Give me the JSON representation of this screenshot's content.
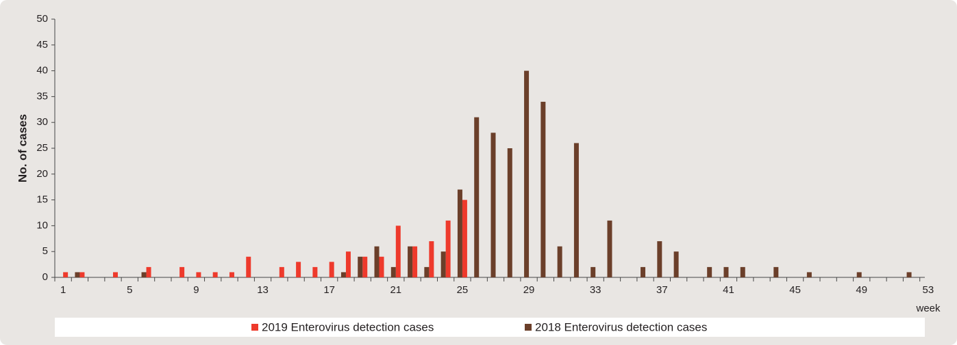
{
  "chart_data": {
    "type": "bar",
    "x_label": "week",
    "y_label": "No. of cases",
    "categories": [
      "1",
      null,
      null,
      null,
      "5",
      null,
      null,
      null,
      "9",
      null,
      null,
      null,
      "13",
      null,
      null,
      null,
      "17",
      null,
      null,
      null,
      "21",
      null,
      null,
      null,
      "25",
      null,
      null,
      null,
      "29",
      null,
      null,
      null,
      "33",
      null,
      null,
      null,
      "37",
      null,
      null,
      null,
      "41",
      null,
      null,
      null,
      "45",
      null,
      null,
      null,
      "49",
      null,
      null,
      null,
      "53"
    ],
    "series": [
      {
        "name": "2019 Enterovirus detection cases",
        "color": "#ee3a2c",
        "values": [
          1,
          1,
          0,
          1,
          0,
          2,
          0,
          2,
          1,
          1,
          1,
          4,
          0,
          2,
          3,
          2,
          3,
          5,
          4,
          4,
          10,
          6,
          7,
          11,
          15,
          null,
          null,
          null,
          null,
          null,
          null,
          null,
          null,
          null,
          null,
          null,
          null,
          null,
          null,
          null,
          null,
          null,
          null,
          null,
          null,
          null,
          null,
          null,
          null,
          null,
          null,
          null,
          null
        ]
      },
      {
        "name": "2018 Enterovirus detection cases",
        "color": "#6b3f2a",
        "values": [
          0,
          1,
          0,
          0,
          0,
          1,
          0,
          0,
          0,
          0,
          0,
          0,
          0,
          0,
          0,
          0,
          0,
          1,
          4,
          6,
          2,
          6,
          2,
          5,
          17,
          31,
          28,
          25,
          40,
          34,
          6,
          26,
          2,
          11,
          0,
          2,
          7,
          5,
          0,
          2,
          2,
          2,
          0,
          2,
          0,
          1,
          0,
          0,
          1,
          0,
          0,
          1,
          null
        ]
      }
    ],
    "ylim": [
      0,
      50
    ],
    "yticks": [
      0,
      5,
      10,
      15,
      20,
      25,
      30,
      35,
      40,
      45,
      50
    ]
  }
}
